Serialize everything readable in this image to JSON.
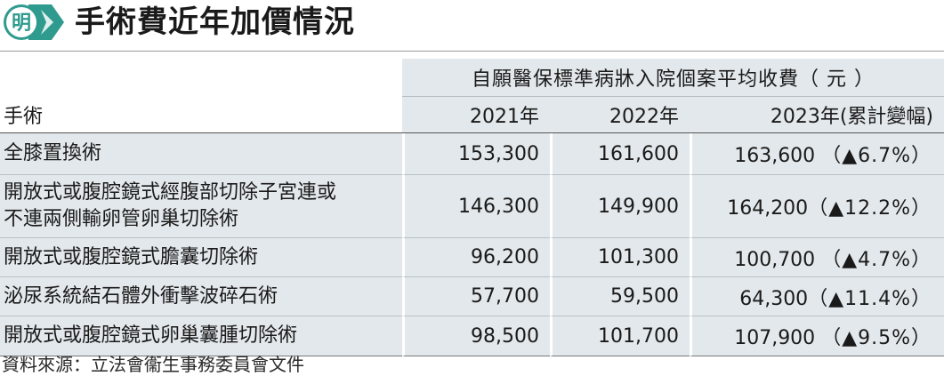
{
  "header": {
    "logo_char": "明",
    "title": "手術費近年加價情況",
    "accent_color": "#2f9b8e"
  },
  "table": {
    "group_header": "自願醫保標準病牀入院個案平均收費（ 元 ）",
    "columns": [
      "手術",
      "2021年",
      "2022年",
      "2023年(累計變幅)"
    ],
    "rows": [
      {
        "name": "全膝置換術",
        "v2021": "153,300",
        "v2022": "161,600",
        "v2023": "163,600",
        "change": "（▲6.7%）"
      },
      {
        "name": "開放式或腹腔鏡式經腹部切除子宮連或",
        "name2": "不連兩側輸卵管卵巢切除術",
        "v2021": "146,300",
        "v2022": "149,900",
        "v2023": "164,200",
        "change": "（▲12.2%）"
      },
      {
        "name": "開放式或腹腔鏡式膽囊切除術",
        "v2021": "96,200",
        "v2022": "101,300",
        "v2023": "100,700",
        "change": "（▲4.7%）"
      },
      {
        "name": "泌尿系統結石體外衝擊波碎石術",
        "v2021": "57,700",
        "v2022": "59,500",
        "v2023": "64,300",
        "change": "（▲11.4%）"
      },
      {
        "name": "開放式或腹腔鏡式卵巢囊腫切除術",
        "v2021": "98,500",
        "v2022": "101,700",
        "v2023": "107,900",
        "change": "（▲9.5%）"
      }
    ]
  },
  "source": "資料來源：立法會衞生事務委員會文件"
}
